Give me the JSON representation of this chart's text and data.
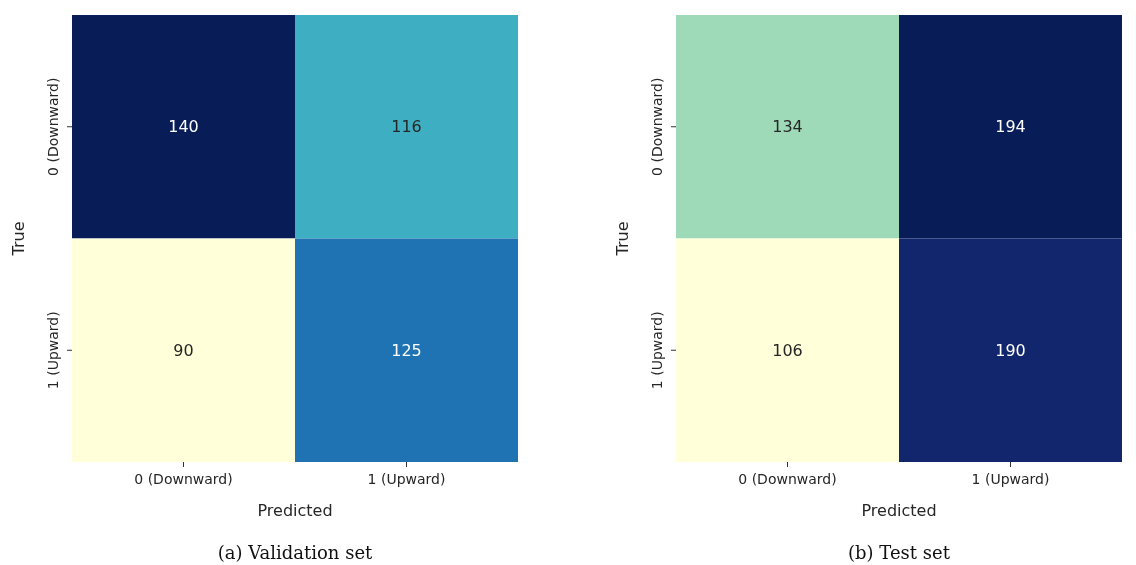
{
  "chart_data": [
    {
      "type": "heatmap",
      "title": "(a) Validation set",
      "xlabel": "Predicted",
      "ylabel": "True",
      "categories": [
        "0 (Downward)",
        "1 (Upward)"
      ],
      "y_categories": [
        "0 (Downward)",
        "1 (Upward)"
      ],
      "cells": [
        [
          140,
          116
        ],
        [
          90,
          125
        ]
      ],
      "data_labels": true
    },
    {
      "type": "heatmap",
      "title": "(b) Test set",
      "xlabel": "Predicted",
      "ylabel": "True",
      "categories": [
        "0 (Downward)",
        "1 (Upward)"
      ],
      "y_categories": [
        "0 (Downward)",
        "1 (Upward)"
      ],
      "cells": [
        [
          134,
          194
        ],
        [
          106,
          190
        ]
      ],
      "data_labels": true
    }
  ]
}
